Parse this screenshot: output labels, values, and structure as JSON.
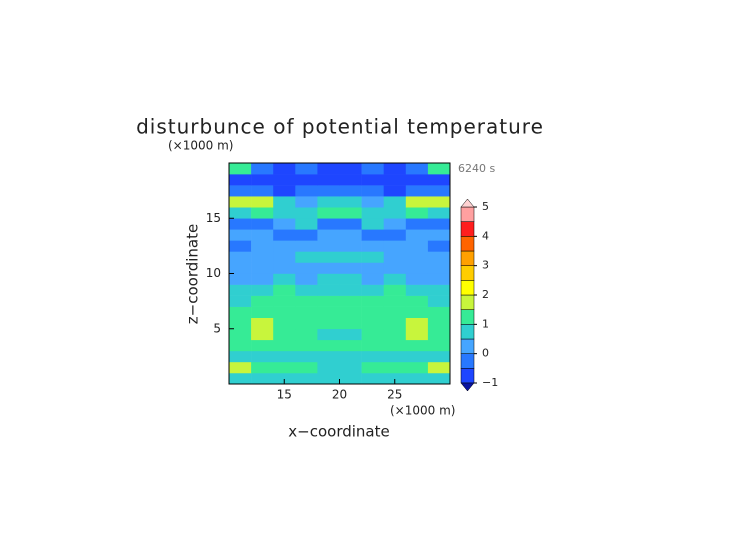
{
  "chart_data": {
    "type": "contour",
    "title": "disturbunce of potential temperature",
    "annotation": "6240 s",
    "x_label": "x−coordinate",
    "y_label": "z−coordinate",
    "x_unit": "(×1000 m)",
    "y_unit": "(×1000 m)",
    "xlim": [
      10,
      30
    ],
    "ylim": [
      0,
      20
    ],
    "xticks": [
      15,
      20,
      25
    ],
    "yticks": [
      5,
      10,
      15
    ],
    "x": [
      11,
      13,
      15,
      17,
      19,
      21,
      23,
      25,
      27,
      29
    ],
    "y": [
      0.5,
      1.5,
      2.5,
      3.5,
      4.5,
      5.5,
      6.5,
      7.5,
      8.5,
      9.5,
      10.5,
      11.5,
      12.5,
      13.5,
      14.5,
      15.5,
      16.5,
      17.5,
      18.5,
      19.5
    ],
    "values": [
      [
        0.75,
        0.75,
        0.75,
        0.75,
        0.75,
        0.75,
        0.75,
        0.75,
        0.75,
        0.75
      ],
      [
        1.75,
        1.25,
        1.25,
        1.25,
        0.75,
        0.75,
        1.25,
        1.25,
        1.25,
        1.75
      ],
      [
        0.75,
        0.75,
        0.75,
        0.75,
        0.75,
        0.75,
        0.75,
        0.75,
        0.75,
        0.75
      ],
      [
        1.25,
        1.25,
        1.25,
        1.25,
        1.25,
        1.25,
        1.25,
        1.25,
        1.25,
        1.25
      ],
      [
        1.25,
        1.75,
        1.25,
        1.25,
        0.75,
        0.75,
        1.25,
        1.25,
        1.75,
        1.25
      ],
      [
        1.25,
        1.75,
        1.25,
        1.25,
        1.25,
        1.25,
        1.25,
        1.25,
        1.75,
        1.25
      ],
      [
        1.25,
        1.25,
        1.25,
        1.25,
        1.25,
        1.25,
        1.25,
        1.25,
        1.25,
        1.25
      ],
      [
        0.75,
        1.25,
        1.25,
        1.25,
        1.25,
        1.25,
        1.25,
        1.25,
        1.25,
        0.75
      ],
      [
        0.75,
        0.75,
        1.25,
        0.75,
        0.75,
        0.75,
        0.75,
        1.25,
        0.75,
        0.75
      ],
      [
        0.25,
        0.25,
        0.75,
        0.25,
        0.75,
        0.75,
        0.25,
        0.75,
        0.25,
        0.25
      ],
      [
        0.25,
        0.25,
        0.25,
        0.25,
        0.25,
        0.25,
        0.25,
        0.25,
        0.25,
        0.25
      ],
      [
        0.25,
        0.25,
        0.25,
        0.75,
        0.75,
        0.75,
        0.75,
        0.25,
        0.25,
        0.25
      ],
      [
        -0.25,
        0.25,
        0.25,
        0.25,
        0.25,
        0.25,
        0.25,
        0.25,
        0.25,
        -0.25
      ],
      [
        0.25,
        0.25,
        -0.25,
        -0.25,
        0.25,
        0.25,
        -0.25,
        -0.25,
        0.25,
        0.25
      ],
      [
        -0.25,
        -0.25,
        0.25,
        0.75,
        -0.25,
        -0.25,
        0.75,
        0.25,
        -0.25,
        -0.25
      ],
      [
        0.75,
        1.25,
        0.75,
        0.75,
        1.25,
        1.25,
        0.75,
        0.75,
        1.25,
        0.75
      ],
      [
        1.75,
        1.75,
        0.75,
        0.25,
        0.75,
        0.75,
        0.25,
        0.75,
        1.75,
        1.75
      ],
      [
        -0.25,
        -0.25,
        -0.75,
        -0.25,
        -0.25,
        -0.25,
        -0.25,
        -0.75,
        -0.25,
        -0.25
      ],
      [
        -0.75,
        -0.75,
        -0.75,
        -0.75,
        -0.75,
        -0.75,
        -0.75,
        -0.75,
        -0.75,
        -0.75
      ],
      [
        1.25,
        -0.25,
        -0.75,
        -0.25,
        -0.75,
        -0.75,
        -0.25,
        -0.75,
        -0.25,
        1.25
      ]
    ],
    "levels": [
      -1,
      -0.5,
      0,
      0.5,
      1,
      1.5,
      2,
      2.5,
      3,
      3.5,
      4,
      4.5,
      5
    ],
    "colors": [
      "#1e46ff",
      "#2878ff",
      "#46a5ff",
      "#30cfd0",
      "#36eb96",
      "#c8f53c",
      "#ffff00",
      "#ffcd00",
      "#ffa000",
      "#ff6400",
      "#ff1e1e",
      "#ffa0a0"
    ],
    "under_color": "#0a14a0",
    "over_color": "#ffd2d2",
    "colorbar_ticks": [
      {
        "value": -1,
        "label": "−1"
      },
      0,
      1,
      2,
      3,
      4,
      5
    ]
  }
}
